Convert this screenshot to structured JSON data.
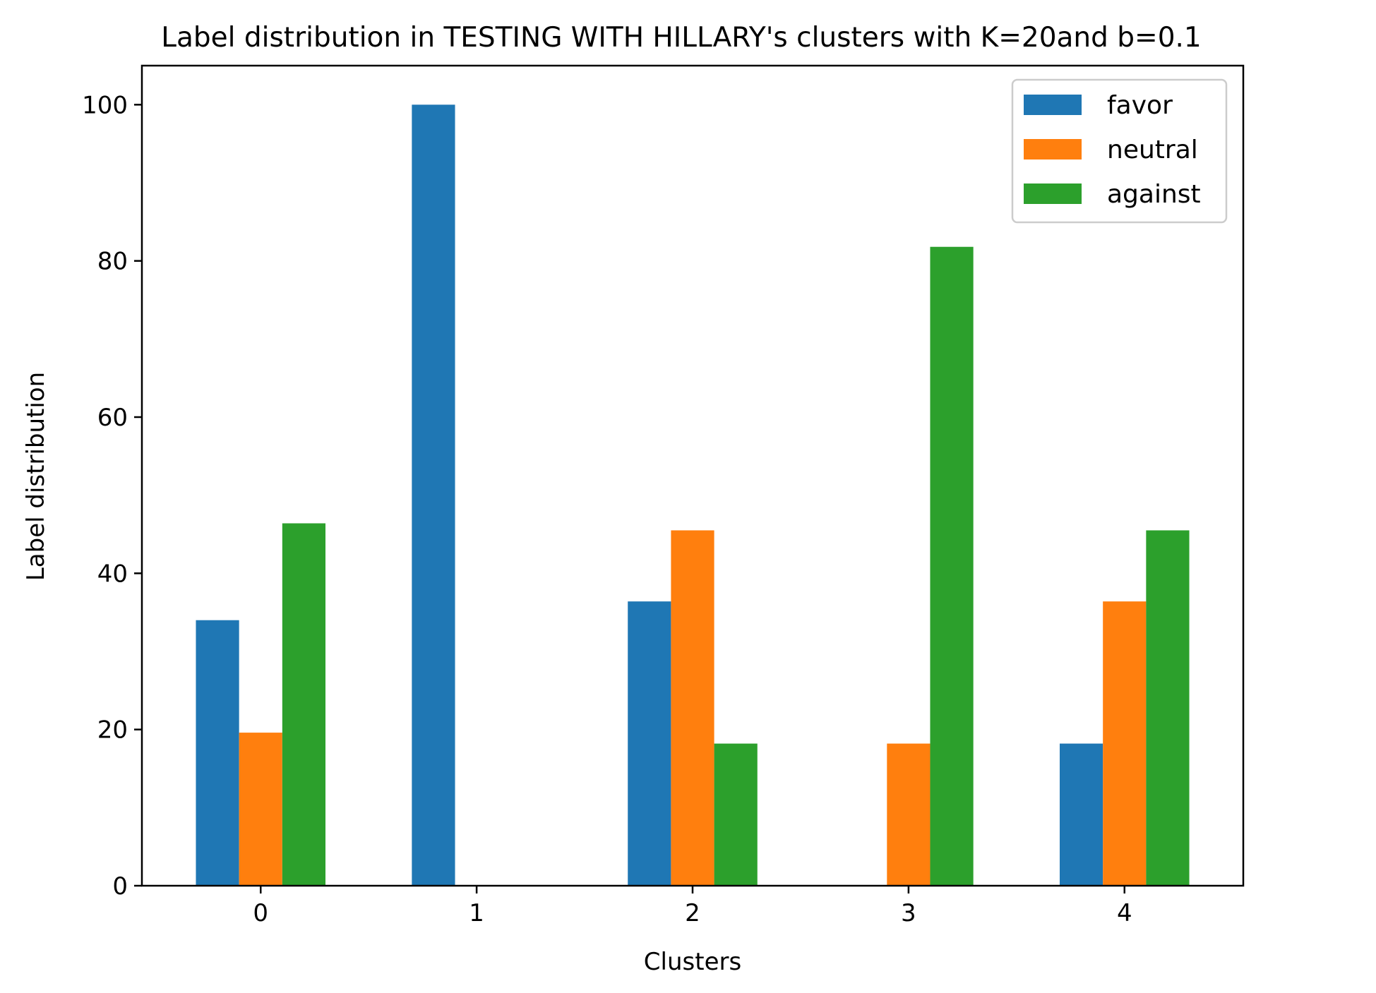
{
  "chart_data": {
    "type": "bar",
    "title": "Label distribution in TESTING WITH HILLARY's clusters with K=20and b=0.1",
    "xlabel": "Clusters",
    "ylabel": "Label distribution",
    "categories": [
      "0",
      "1",
      "2",
      "3",
      "4"
    ],
    "series": [
      {
        "name": "favor",
        "color": "#1f77b4",
        "values": [
          34.0,
          100.0,
          36.4,
          0.0,
          18.2
        ]
      },
      {
        "name": "neutral",
        "color": "#ff7f0e",
        "values": [
          19.6,
          0.0,
          45.5,
          18.2,
          36.4
        ]
      },
      {
        "name": "against",
        "color": "#2ca02c",
        "values": [
          46.4,
          0.0,
          18.2,
          81.8,
          45.5
        ]
      }
    ],
    "ylim": [
      0,
      105
    ],
    "yticks": [
      0,
      20,
      40,
      60,
      80,
      100
    ],
    "xlim": [
      -0.55,
      4.55
    ],
    "grid": false,
    "legend_position": "top-right"
  }
}
